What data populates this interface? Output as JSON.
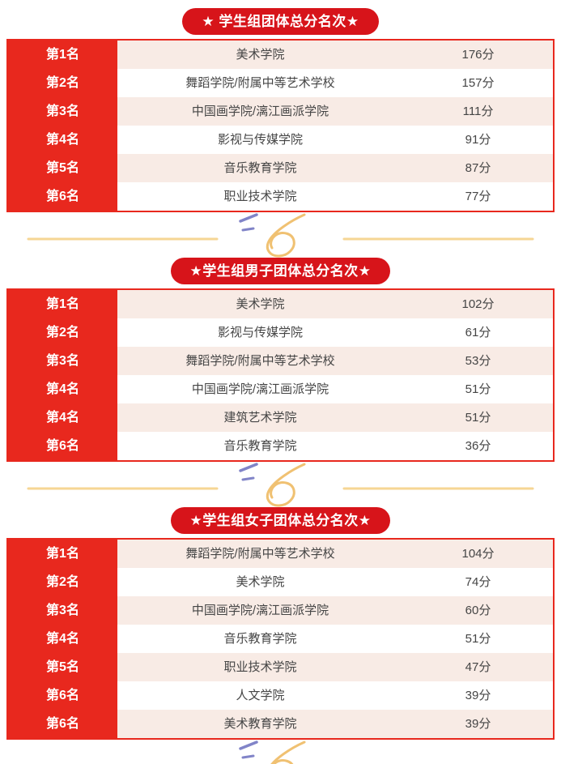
{
  "colors": {
    "page-bg": "#ffffff",
    "red": "#e8281e",
    "pill-red": "#d7141a",
    "pink": "#f8ebe5",
    "text-dark": "#454545",
    "gold-line": "#f6d694",
    "gold-swirl": "#f0c172",
    "purple-accent": "#8184c8"
  },
  "sections": [
    {
      "title": "★ 学生组团体总分名次★",
      "rows": [
        {
          "rank": "第1名",
          "name": "美术学院",
          "score": "176分"
        },
        {
          "rank": "第2名",
          "name": "舞蹈学院/附属中等艺术学校",
          "score": "157分"
        },
        {
          "rank": "第3名",
          "name": "中国画学院/漓江画派学院",
          "score": "111分"
        },
        {
          "rank": "第4名",
          "name": "影视与传媒学院",
          "score": "91分"
        },
        {
          "rank": "第5名",
          "name": "音乐教育学院",
          "score": "87分"
        },
        {
          "rank": "第6名",
          "name": "职业技术学院",
          "score": "77分"
        }
      ]
    },
    {
      "title": "★学生组男子团体总分名次★",
      "rows": [
        {
          "rank": "第1名",
          "name": "美术学院",
          "score": "102分"
        },
        {
          "rank": "第2名",
          "name": "影视与传媒学院",
          "score": "61分"
        },
        {
          "rank": "第3名",
          "name": "舞蹈学院/附属中等艺术学校",
          "score": "53分"
        },
        {
          "rank": "第4名",
          "name": "中国画学院/漓江画派学院",
          "score": "51分"
        },
        {
          "rank": "第4名",
          "name": "建筑艺术学院",
          "score": "51分"
        },
        {
          "rank": "第6名",
          "name": "音乐教育学院",
          "score": "36分"
        }
      ]
    },
    {
      "title": "★学生组女子团体总分名次★",
      "rows": [
        {
          "rank": "第1名",
          "name": "舞蹈学院/附属中等艺术学校",
          "score": "104分"
        },
        {
          "rank": "第2名",
          "name": "美术学院",
          "score": "74分"
        },
        {
          "rank": "第3名",
          "name": "中国画学院/漓江画派学院",
          "score": "60分"
        },
        {
          "rank": "第4名",
          "name": "音乐教育学院",
          "score": "51分"
        },
        {
          "rank": "第5名",
          "name": "职业技术学院",
          "score": "47分"
        },
        {
          "rank": "第6名",
          "name": "人文学院",
          "score": "39分"
        },
        {
          "rank": "第6名",
          "name": "美术教育学院",
          "score": "39分"
        }
      ]
    }
  ]
}
